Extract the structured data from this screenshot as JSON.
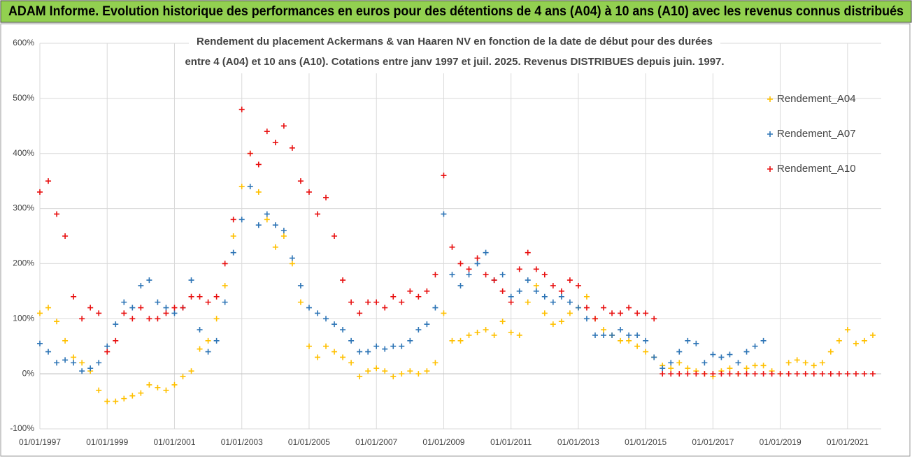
{
  "chart_data": {
    "type": "scatter",
    "title": "ADAM Informe. Evolution historique des performances en euros pour des détentions de 4 ans (A04) à 10 ans (A10) avec les revenus connus distribués",
    "subtitle": [
      "Rendement du placement Ackermans & van Haaren NV en fonction de la date de début pour des durées",
      "entre 4 (A04) et 10 ans (A10).  Cotations entre janv 1997 et juil. 2025. Revenus DISTRIBUES depuis juin. 1997."
    ],
    "x": [
      "1997-01",
      "1997-04",
      "1997-07",
      "1997-10",
      "1998-01",
      "1998-04",
      "1998-07",
      "1998-10",
      "1999-01",
      "1999-04",
      "1999-07",
      "1999-10",
      "2000-01",
      "2000-04",
      "2000-07",
      "2000-10",
      "2001-01",
      "2001-04",
      "2001-07",
      "2001-10",
      "2002-01",
      "2002-04",
      "2002-07",
      "2002-10",
      "2003-01",
      "2003-04",
      "2003-07",
      "2003-10",
      "2004-01",
      "2004-04",
      "2004-07",
      "2004-10",
      "2005-01",
      "2005-04",
      "2005-07",
      "2005-10",
      "2006-01",
      "2006-04",
      "2006-07",
      "2006-10",
      "2007-01",
      "2007-04",
      "2007-07",
      "2007-10",
      "2008-01",
      "2008-04",
      "2008-07",
      "2008-10",
      "2009-01",
      "2009-04",
      "2009-07",
      "2009-10",
      "2010-01",
      "2010-04",
      "2010-07",
      "2010-10",
      "2011-01",
      "2011-04",
      "2011-07",
      "2011-10",
      "2012-01",
      "2012-04",
      "2012-07",
      "2012-10",
      "2013-01",
      "2013-04",
      "2013-07",
      "2013-10",
      "2014-01",
      "2014-04",
      "2014-07",
      "2014-10",
      "2015-01",
      "2015-04",
      "2015-07",
      "2015-10",
      "2016-01",
      "2016-04",
      "2016-07",
      "2016-10",
      "2017-01",
      "2017-04",
      "2017-07",
      "2017-10",
      "2018-01",
      "2018-04",
      "2018-07",
      "2018-10",
      "2019-01",
      "2019-04",
      "2019-07",
      "2019-10",
      "2020-01",
      "2020-04",
      "2020-07",
      "2020-10",
      "2021-01",
      "2021-04",
      "2021-07",
      "2021-10"
    ],
    "series": [
      {
        "name": "Rendement_A04",
        "color": "#ffc000",
        "values": [
          110,
          120,
          95,
          60,
          30,
          20,
          5,
          -30,
          -50,
          -50,
          -45,
          -40,
          -35,
          -20,
          -25,
          -30,
          -20,
          -5,
          5,
          45,
          60,
          100,
          160,
          250,
          340,
          400,
          330,
          280,
          230,
          250,
          200,
          130,
          50,
          30,
          50,
          40,
          30,
          20,
          -5,
          5,
          10,
          5,
          -5,
          0,
          5,
          0,
          5,
          20,
          110,
          60,
          60,
          70,
          75,
          80,
          70,
          95,
          75,
          70,
          130,
          160,
          110,
          90,
          95,
          110,
          120,
          140,
          100,
          80,
          70,
          60,
          60,
          50,
          40,
          30,
          15,
          10,
          20,
          10,
          5,
          0,
          -5,
          5,
          10,
          0,
          10,
          15,
          15,
          5,
          0,
          20,
          25,
          20,
          15,
          20,
          40,
          60,
          80,
          55,
          60,
          70
        ]
      },
      {
        "name": "Rendement_A07",
        "color": "#2e75b6",
        "values": [
          55,
          40,
          20,
          25,
          20,
          5,
          10,
          20,
          50,
          90,
          130,
          120,
          160,
          170,
          130,
          120,
          110,
          120,
          170,
          80,
          40,
          60,
          130,
          220,
          280,
          340,
          270,
          290,
          270,
          260,
          210,
          160,
          120,
          110,
          100,
          90,
          80,
          60,
          40,
          40,
          50,
          45,
          50,
          50,
          60,
          80,
          90,
          120,
          290,
          180,
          160,
          180,
          200,
          220,
          170,
          180,
          140,
          150,
          170,
          150,
          140,
          130,
          140,
          130,
          120,
          100,
          70,
          70,
          70,
          80,
          70,
          70,
          60,
          30,
          10,
          20,
          40,
          60,
          55,
          20,
          35,
          30,
          35,
          20,
          40,
          50,
          60,
          null,
          null,
          null,
          null,
          null,
          null,
          null,
          null,
          null,
          null,
          null,
          null,
          null
        ]
      },
      {
        "name": "Rendement_A10",
        "color": "#e81010",
        "values": [
          330,
          350,
          290,
          250,
          140,
          100,
          120,
          110,
          40,
          60,
          110,
          100,
          120,
          100,
          100,
          110,
          120,
          120,
          140,
          140,
          130,
          140,
          200,
          280,
          480,
          400,
          380,
          440,
          420,
          450,
          410,
          350,
          330,
          290,
          320,
          250,
          170,
          130,
          110,
          130,
          130,
          120,
          140,
          130,
          150,
          140,
          150,
          180,
          360,
          230,
          200,
          190,
          210,
          180,
          170,
          150,
          130,
          190,
          220,
          190,
          180,
          160,
          150,
          170,
          160,
          120,
          100,
          120,
          110,
          110,
          120,
          110,
          110,
          100,
          0,
          0,
          0,
          0,
          0,
          0,
          0,
          0,
          0,
          0,
          0,
          0,
          0,
          0,
          0,
          0,
          0,
          0,
          0,
          0,
          0,
          0,
          0,
          0,
          0,
          0
        ]
      }
    ],
    "xlim": [
      "1997-01",
      "2022-01"
    ],
    "xticks": [
      {
        "value": "1997-01",
        "label": "01/01/1997"
      },
      {
        "value": "1999-01",
        "label": "01/01/1999"
      },
      {
        "value": "2001-01",
        "label": "01/01/2001"
      },
      {
        "value": "2003-01",
        "label": "01/01/2003"
      },
      {
        "value": "2005-01",
        "label": "01/01/2005"
      },
      {
        "value": "2007-01",
        "label": "01/01/2007"
      },
      {
        "value": "2009-01",
        "label": "01/01/2009"
      },
      {
        "value": "2011-01",
        "label": "01/01/2011"
      },
      {
        "value": "2013-01",
        "label": "01/01/2013"
      },
      {
        "value": "2015-01",
        "label": "01/01/2015"
      },
      {
        "value": "2017-01",
        "label": "01/01/2017"
      },
      {
        "value": "2019-01",
        "label": "01/01/2019"
      },
      {
        "value": "2021-01",
        "label": "01/01/2021"
      }
    ],
    "ylim": [
      -100,
      600
    ],
    "yticks": [
      {
        "value": -100,
        "label": "-100%"
      },
      {
        "value": 0,
        "label": "0%"
      },
      {
        "value": 100,
        "label": "100%"
      },
      {
        "value": 200,
        "label": "200%"
      },
      {
        "value": 300,
        "label": "300%"
      },
      {
        "value": 400,
        "label": "400%"
      },
      {
        "value": 500,
        "label": "500%"
      },
      {
        "value": 600,
        "label": "600%"
      }
    ],
    "grid": true,
    "legend": "right"
  }
}
